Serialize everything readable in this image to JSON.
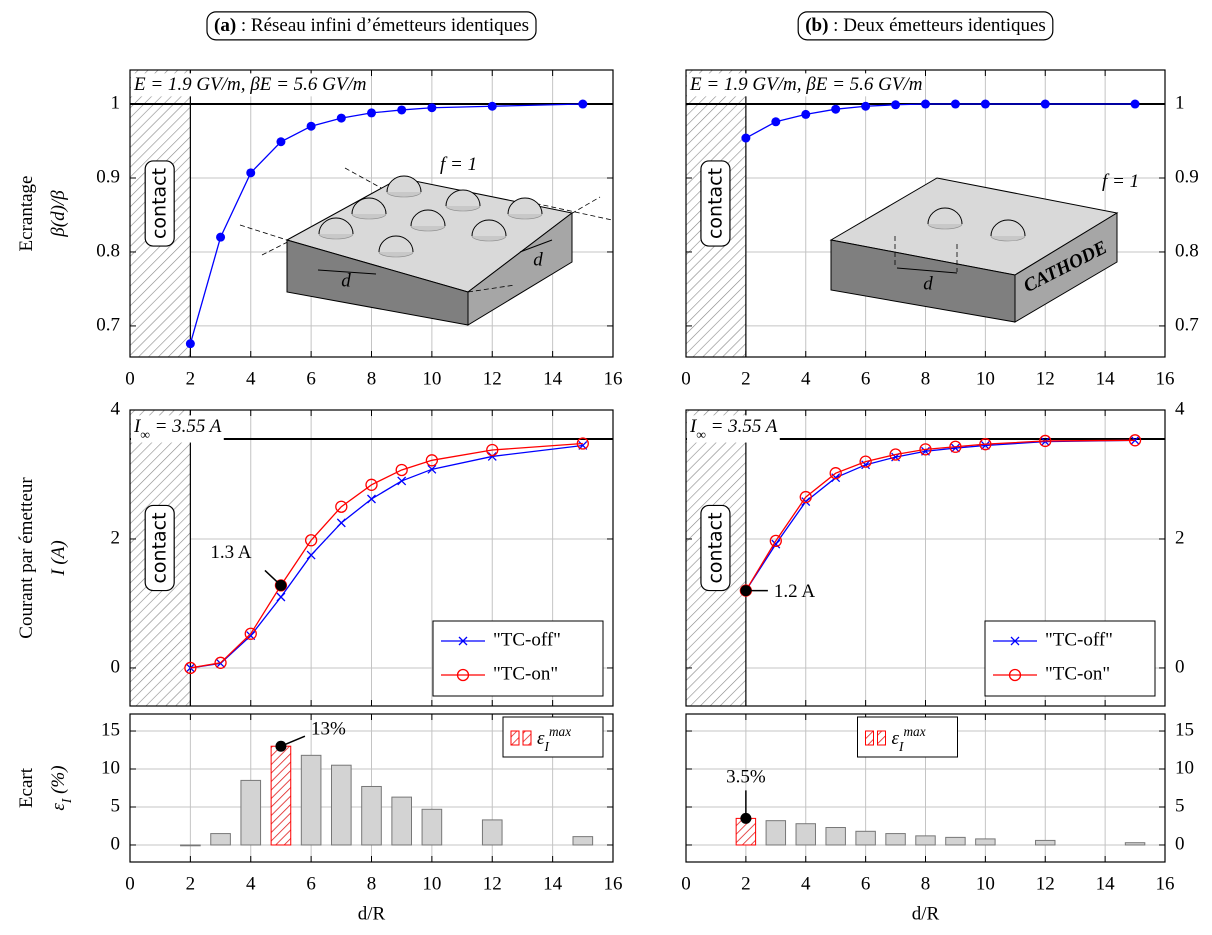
{
  "chart_data": [
    {
      "type": "line",
      "title": [
        {
          "text": "(a)",
          "bold": true
        },
        {
          "text": " : Réseau infini d’émetteurs identiques"
        }
      ],
      "ylabel": [
        [
          {
            "text": "Ecrantage"
          }
        ],
        [
          {
            "text": "β(d)/β"
          }
        ]
      ],
      "x": [
        2,
        3,
        4,
        5,
        6,
        7,
        8,
        9,
        10,
        12,
        15
      ],
      "series": [
        {
          "color": "#0000ff",
          "marker": "circle-filled",
          "values": [
            0.676,
            0.82,
            0.907,
            0.949,
            0.97,
            0.981,
            0.988,
            0.992,
            0.995,
            0.997,
            1.0
          ]
        }
      ],
      "xlim": [
        0,
        16
      ],
      "xticks": [
        0,
        2,
        4,
        6,
        8,
        10,
        12,
        14,
        16
      ],
      "ylim": [
        0.658,
        1.046
      ],
      "yticks": [
        0.7,
        0.8,
        0.9,
        1
      ],
      "yaxis_side": "left",
      "grid": true,
      "show_xtick_labels": true,
      "hline": 1,
      "contact_region": [
        0,
        2
      ],
      "contact_label": "contact",
      "annotations": [
        [
          {
            "text": "E = 1.9 GV/m,    βE = 5.6 GV/m"
          }
        ],
        [
          {
            "text": "f = 1"
          }
        ]
      ],
      "inset_labels": [
        "d",
        "d"
      ]
    },
    {
      "type": "line",
      "title": [
        {
          "text": "(b)",
          "bold": true
        },
        {
          "text": " : Deux émetteurs identiques"
        }
      ],
      "x": [
        2,
        3,
        4,
        5,
        6,
        7,
        8,
        9,
        10,
        12,
        15
      ],
      "series": [
        {
          "color": "#0000ff",
          "marker": "circle-filled",
          "values": [
            0.954,
            0.976,
            0.986,
            0.993,
            0.997,
            0.999,
            1.0,
            1.0,
            1.0,
            1.0,
            1.0
          ]
        }
      ],
      "xlim": [
        0,
        16
      ],
      "xticks": [
        0,
        2,
        4,
        6,
        8,
        10,
        12,
        14,
        16
      ],
      "ylim": [
        0.658,
        1.046
      ],
      "yticks": [
        0.7,
        0.8,
        0.9,
        1
      ],
      "yaxis_side": "right",
      "grid": true,
      "show_xtick_labels": true,
      "hline": 1,
      "contact_region": [
        0,
        2
      ],
      "contact_label": "contact",
      "annotations": [
        [
          {
            "text": "E = 1.9 GV/m,    βE = 5.6 GV/m"
          }
        ],
        [
          {
            "text": "f = 1"
          }
        ]
      ],
      "inset_labels": [
        "d",
        "CATHODE"
      ]
    },
    {
      "type": "line",
      "ylabel": [
        [
          {
            "text": "Courant par émetteur"
          }
        ],
        [
          {
            "text": "I (A)"
          }
        ]
      ],
      "x": [
        2,
        3,
        4,
        5,
        6,
        7,
        8,
        9,
        10,
        12,
        15
      ],
      "series": [
        {
          "name": "\"TC-off\"",
          "color": "#0000ff",
          "marker": "x",
          "values": [
            0,
            0.07,
            0.5,
            1.1,
            1.75,
            2.25,
            2.62,
            2.9,
            3.08,
            3.28,
            3.45
          ]
        },
        {
          "name": "\"TC-on\"",
          "color": "#ff0000",
          "marker": "circle-open",
          "values": [
            0,
            0.08,
            0.53,
            1.28,
            1.98,
            2.5,
            2.84,
            3.07,
            3.22,
            3.38,
            3.48
          ],
          "value_labels": [
            null,
            null,
            null,
            "1.3 A",
            null,
            null,
            null,
            null,
            null,
            null,
            null
          ]
        }
      ],
      "xlim": [
        0,
        16
      ],
      "xticks": [
        0,
        2,
        4,
        6,
        8,
        10,
        12,
        14,
        16
      ],
      "ylim": [
        -0.59,
        4
      ],
      "yticks": [
        0,
        2,
        4
      ],
      "yaxis_side": "left",
      "grid": true,
      "show_xtick_labels": false,
      "hline": 3.55,
      "contact_region": [
        0,
        2
      ],
      "contact_label": "contact",
      "annotations": [
        [
          {
            "text": "I"
          },
          {
            "text": "∞",
            "sub": true
          },
          {
            "text": " = 3.55 A"
          }
        ]
      ],
      "legend_loc": "lower right"
    },
    {
      "type": "line",
      "x": [
        2,
        3,
        4,
        5,
        6,
        7,
        8,
        9,
        10,
        12,
        15
      ],
      "series": [
        {
          "name": "\"TC-off\"",
          "color": "#0000ff",
          "marker": "x",
          "values": [
            1.2,
            1.92,
            2.58,
            2.95,
            3.15,
            3.27,
            3.36,
            3.41,
            3.45,
            3.51,
            3.53
          ]
        },
        {
          "name": "\"TC-on\"",
          "color": "#ff0000",
          "marker": "circle-open",
          "values": [
            1.2,
            1.97,
            2.65,
            3.02,
            3.2,
            3.31,
            3.39,
            3.43,
            3.47,
            3.52,
            3.53
          ],
          "value_labels": [
            "1.2 A",
            null,
            null,
            null,
            null,
            null,
            null,
            null,
            null,
            null,
            null
          ]
        }
      ],
      "xlim": [
        0,
        16
      ],
      "xticks": [
        0,
        2,
        4,
        6,
        8,
        10,
        12,
        14,
        16
      ],
      "ylim": [
        -0.59,
        4
      ],
      "yticks": [
        0,
        2,
        4
      ],
      "yaxis_side": "right",
      "grid": true,
      "show_xtick_labels": false,
      "hline": 3.55,
      "contact_region": [
        0,
        2
      ],
      "contact_label": "contact",
      "annotations": [
        [
          {
            "text": "I"
          },
          {
            "text": "∞",
            "sub": true
          },
          {
            "text": " = 3.55 A"
          }
        ]
      ],
      "legend_loc": "lower right"
    },
    {
      "type": "bar",
      "ylabel": [
        [
          {
            "text": "Ecart"
          }
        ],
        [
          {
            "text": "ε"
          },
          {
            "text": "I",
            "sub": true
          },
          {
            "text": " (%)"
          }
        ]
      ],
      "xlabel": "d/R",
      "x": [
        2,
        3,
        4,
        5,
        6,
        7,
        8,
        9,
        10,
        12,
        15
      ],
      "values": [
        0,
        1.5,
        8.5,
        13,
        11.8,
        10.5,
        7.7,
        6.3,
        4.7,
        3.3,
        1.1
      ],
      "value_labels": [
        null,
        null,
        null,
        "13%",
        null,
        null,
        null,
        null,
        null,
        null,
        null
      ],
      "color": "#d3d3d3",
      "highlight_color": "#ff0000",
      "legend": [
        {
          "text": "ε"
        },
        {
          "text": "I",
          "sub": true
        },
        {
          "text": "max",
          "sup": true
        }
      ],
      "legend_loc": "upper right",
      "xlim": [
        0,
        16
      ],
      "xticks": [
        0,
        2,
        4,
        6,
        8,
        10,
        12,
        14,
        16
      ],
      "ylim": [
        -2.24,
        17.24
      ],
      "yticks": [
        0,
        5,
        10,
        15
      ],
      "yaxis_side": "left",
      "grid": true,
      "show_xtick_labels": true
    },
    {
      "type": "bar",
      "xlabel": "d/R",
      "x": [
        2,
        3,
        4,
        5,
        6,
        7,
        8,
        9,
        10,
        12,
        15
      ],
      "values": [
        3.5,
        3.2,
        2.8,
        2.3,
        1.8,
        1.5,
        1.2,
        1.0,
        0.8,
        0.6,
        0.3
      ],
      "value_labels": [
        "3.5%",
        null,
        null,
        null,
        null,
        null,
        null,
        null,
        null,
        null,
        null
      ],
      "color": "#d3d3d3",
      "highlight_color": "#ff0000",
      "legend": [
        {
          "text": "ε"
        },
        {
          "text": "I",
          "sub": true
        },
        {
          "text": "max",
          "sup": true
        }
      ],
      "legend_loc": "upper center",
      "xlim": [
        0,
        16
      ],
      "xticks": [
        0,
        2,
        4,
        6,
        8,
        10,
        12,
        14,
        16
      ],
      "ylim": [
        -2.24,
        17.24
      ],
      "yticks": [
        0,
        5,
        10,
        15
      ],
      "yaxis_side": "right",
      "grid": true,
      "show_xtick_labels": true
    }
  ]
}
